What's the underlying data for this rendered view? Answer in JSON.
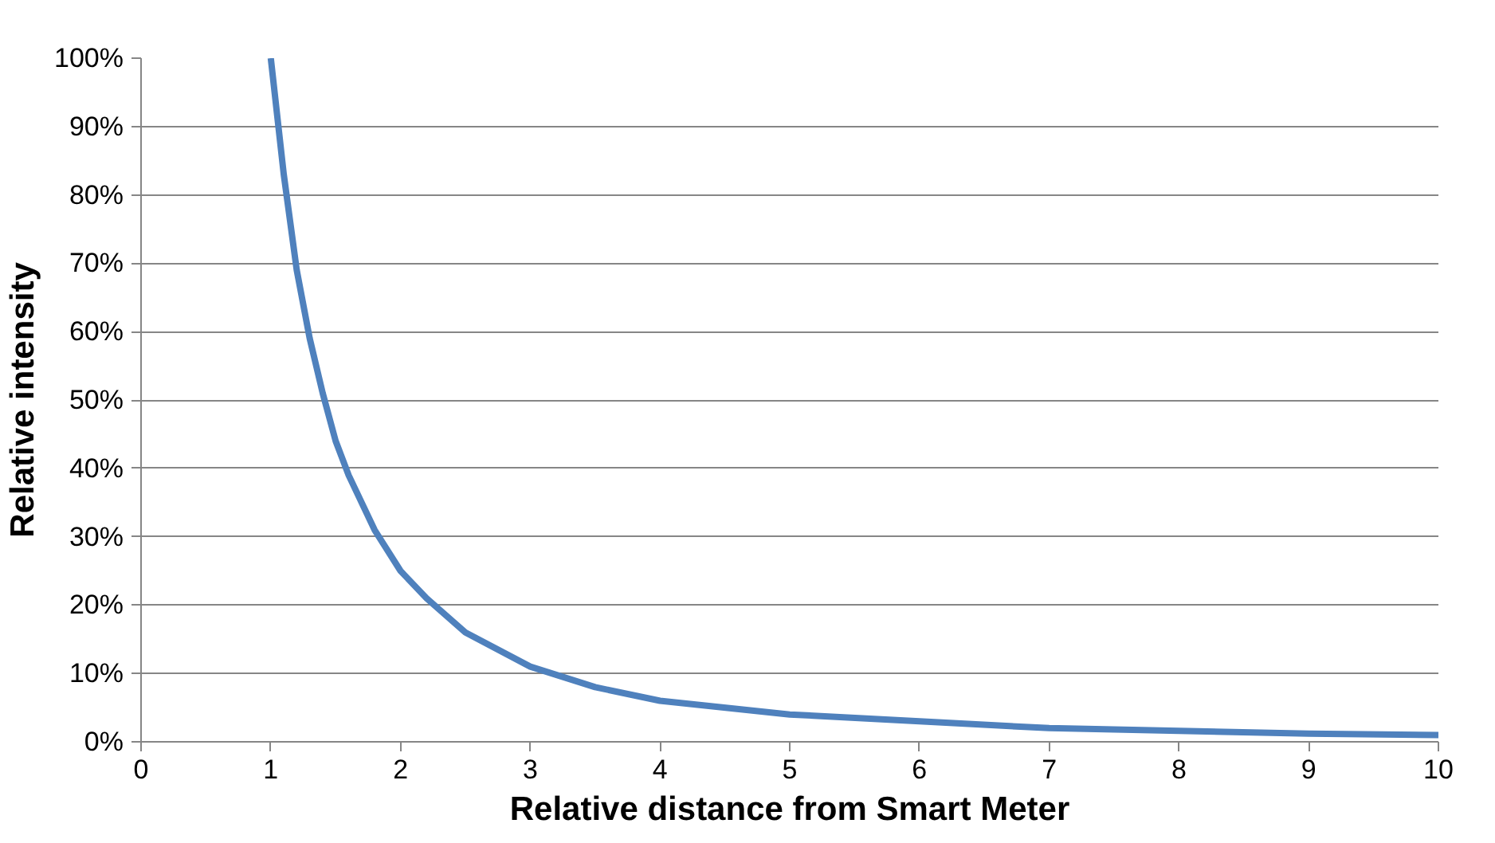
{
  "chart_data": {
    "type": "line",
    "xlabel": "Relative distance from Smart Meter",
    "ylabel": "Relative intensity",
    "x": [
      1,
      1.1,
      1.2,
      1.3,
      1.4,
      1.5,
      1.6,
      1.8,
      2,
      2.2,
      2.5,
      3,
      3.5,
      4,
      5,
      6,
      7,
      8,
      9,
      10
    ],
    "series": [
      {
        "color": "#4f81bd",
        "values": [
          100,
          83,
          69,
          59,
          51,
          44,
          39,
          31,
          25,
          21,
          16,
          11,
          8,
          6,
          4,
          3,
          2,
          1.6,
          1.2,
          1
        ]
      }
    ],
    "xlim": [
      0,
      10
    ],
    "xticks": [
      0,
      1,
      2,
      3,
      4,
      5,
      6,
      7,
      8,
      9,
      10
    ],
    "ylim": [
      0,
      100
    ],
    "yticks": [
      {
        "value": 0,
        "label": "0%"
      },
      {
        "value": 10,
        "label": "10%"
      },
      {
        "value": 20,
        "label": "20%"
      },
      {
        "value": 30,
        "label": "30%"
      },
      {
        "value": 40,
        "label": "40%"
      },
      {
        "value": 50,
        "label": "50%"
      },
      {
        "value": 60,
        "label": "60%"
      },
      {
        "value": 70,
        "label": "70%"
      },
      {
        "value": 80,
        "label": "80%"
      },
      {
        "value": 90,
        "label": "90%"
      },
      {
        "value": 100,
        "label": "100%"
      }
    ],
    "grid": "y"
  }
}
